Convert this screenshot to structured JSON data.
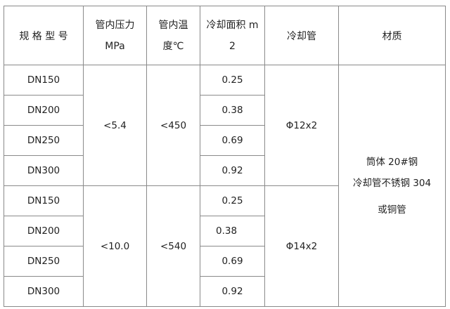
{
  "headers": {
    "model": "规 格 型 号",
    "pressure_line1": "管内压力",
    "pressure_line2": "MPa",
    "temp_line1": "管内温",
    "temp_line2": "度℃",
    "area_line1": "冷却面积 m",
    "area_line2": "2",
    "cooling_tube": "冷却管",
    "material": "材质"
  },
  "groups": [
    {
      "pressure": "<5.4",
      "temperature": "<450",
      "cooling_tube": "Φ12x2",
      "rows": [
        {
          "model": "DN150",
          "area": "0.25"
        },
        {
          "model": "DN200",
          "area": "0.38"
        },
        {
          "model": "DN250",
          "area": "0.69"
        },
        {
          "model": "DN300",
          "area": "0.92"
        }
      ]
    },
    {
      "pressure": "<10.0",
      "temperature": "<540",
      "cooling_tube": "Φ14x2",
      "rows": [
        {
          "model": "DN150",
          "area": "0.25"
        },
        {
          "model": "DN200",
          "area": "0.38"
        },
        {
          "model": "DN250",
          "area": "0.69"
        },
        {
          "model": "DN300",
          "area": "0.92"
        }
      ]
    }
  ],
  "material": {
    "line1": "筒体 20#钢",
    "line2": "冷却管不锈钢 304",
    "line3": "或铜管"
  }
}
